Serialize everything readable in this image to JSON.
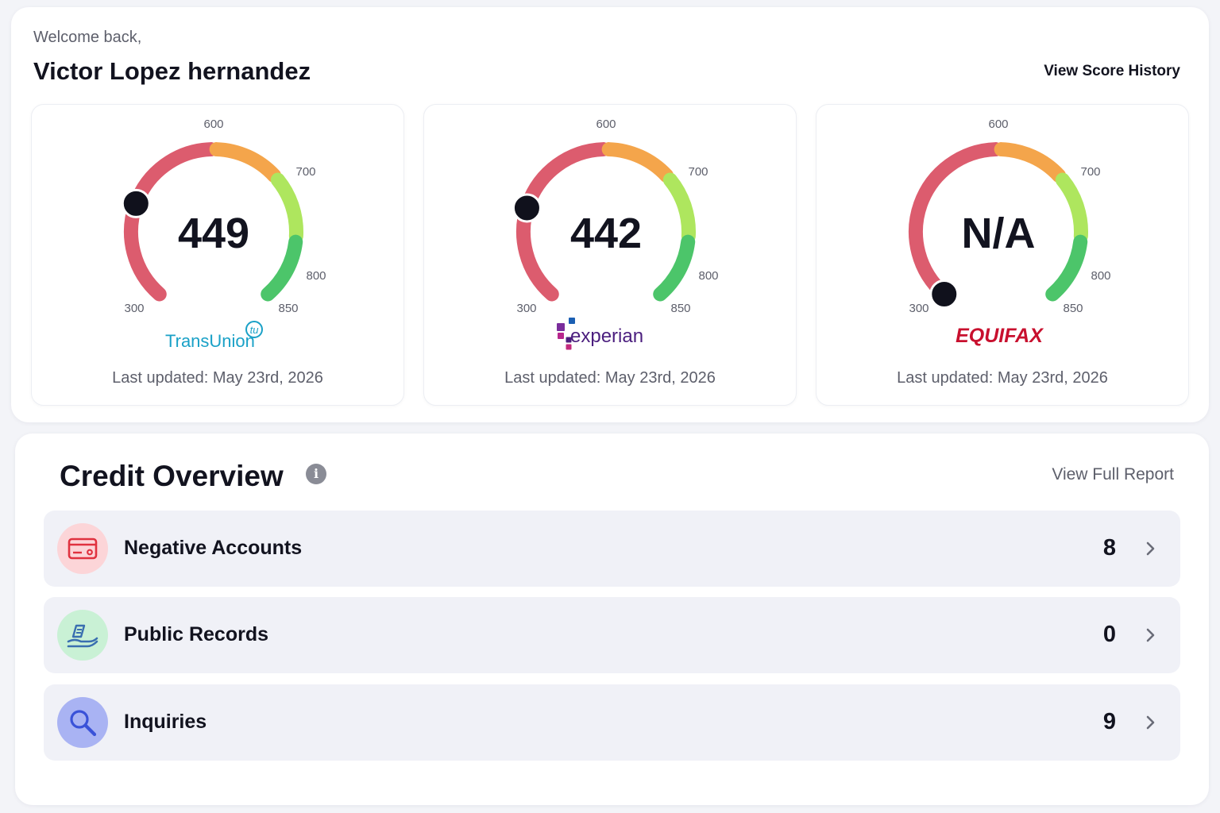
{
  "header": {
    "welcome": "Welcome back,",
    "user_name": "Victor Lopez hernandez",
    "history_link": "View Score History"
  },
  "gauge_scale": {
    "min": 300,
    "max": 850,
    "ticks": [
      "300",
      "600",
      "700",
      "800",
      "850"
    ],
    "band_colors": {
      "poor": "#dc5c6e",
      "fair": "#f4a54b",
      "good": "#aee65e",
      "excellent": "#4cc56a"
    }
  },
  "bureaus": [
    {
      "name": "TransUnion",
      "logo_text": "TransUnion",
      "logo_badge": "tu",
      "score_text": "449",
      "score_value": 449,
      "updated": "Last updated: May 23rd, 2026",
      "logo_color": "#1aa1c7"
    },
    {
      "name": "Experian",
      "logo_text": "experian",
      "score_text": "442",
      "score_value": 442,
      "updated": "Last updated: May 23rd, 2026",
      "logo_color": "#4b1e7e"
    },
    {
      "name": "Equifax",
      "logo_text": "EQUIFAX",
      "score_text": "N/A",
      "score_value": 300,
      "updated": "Last updated: May 23rd, 2026",
      "logo_color": "#c8102e"
    }
  ],
  "overview": {
    "title": "Credit Overview",
    "report_link": "View Full Report",
    "rows": [
      {
        "label": "Negative Accounts",
        "count": "8",
        "icon": "credit-card-icon",
        "icon_bg": "#fcd5d8",
        "icon_color": "#e0323f"
      },
      {
        "label": "Public Records",
        "count": "0",
        "icon": "court-records-icon",
        "icon_bg": "#c9f1d5",
        "icon_color": "#3a6fb0"
      },
      {
        "label": "Inquiries",
        "count": "9",
        "icon": "magnifier-icon",
        "icon_bg": "#a9b3f3",
        "icon_color": "#3a52d8"
      }
    ]
  }
}
